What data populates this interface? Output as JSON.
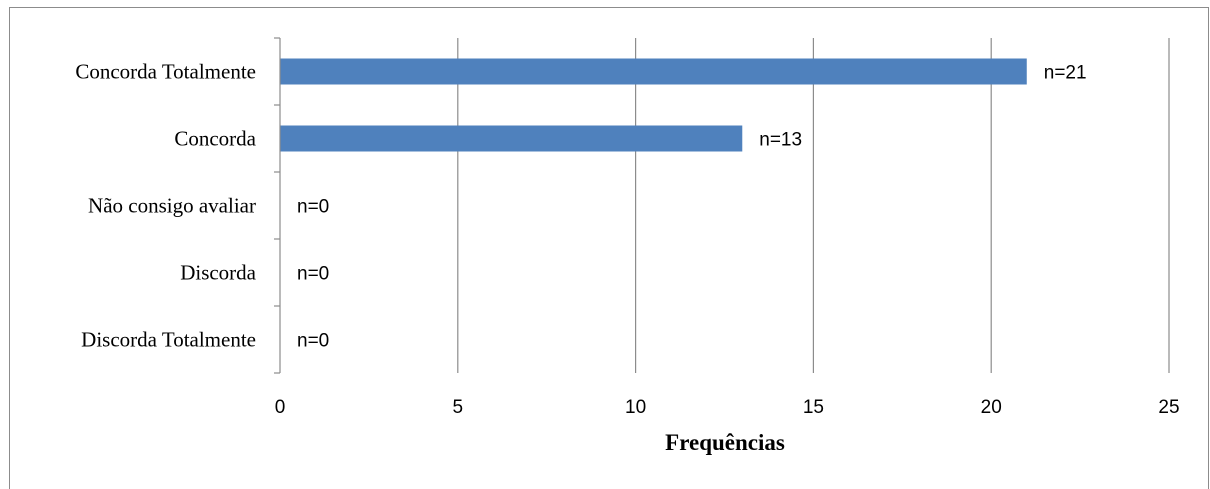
{
  "chart_data": {
    "type": "bar",
    "orientation": "horizontal",
    "categories": [
      "Concorda Totalmente",
      "Concorda",
      "Não consigo avaliar",
      "Discorda",
      "Discorda Totalmente"
    ],
    "values": [
      21,
      13,
      0,
      0,
      0
    ],
    "data_labels": [
      "n=21",
      "n=13",
      "n=0",
      "n=0",
      "n=0"
    ],
    "xlabel": "Frequências",
    "ylabel": "",
    "title": "",
    "xlim": [
      0,
      25
    ],
    "x_ticks": [
      "0",
      "5",
      "10",
      "15",
      "20",
      "25"
    ],
    "grid": true,
    "legend": "none",
    "bar_color": "#4F81BD"
  }
}
